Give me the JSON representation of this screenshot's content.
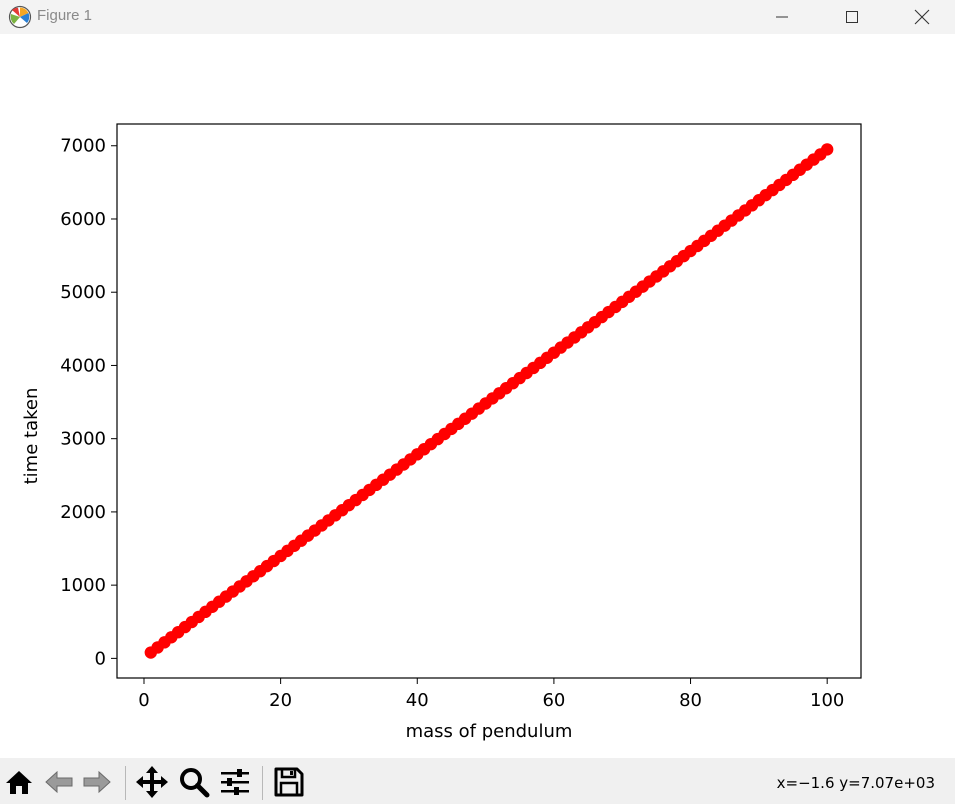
{
  "window": {
    "title": "Figure 1",
    "controls": [
      "minimize-icon",
      "maximize-icon",
      "close-icon"
    ]
  },
  "toolbar": {
    "buttons": [
      "home-icon",
      "back-icon",
      "forward-icon",
      "pan-icon",
      "zoom-icon",
      "configure-subplots-icon",
      "save-icon"
    ],
    "coords_readout": "x=−1.6 y=7.07e+03"
  },
  "chart_data": {
    "type": "scatter",
    "title": "",
    "xlabel": "mass of pendulum",
    "ylabel": "time taken",
    "xlim": [
      -3.95,
      104.95
    ],
    "ylim": [
      -268,
      7297
    ],
    "xticks": [
      0,
      20,
      40,
      60,
      80,
      100
    ],
    "xtick_labels": [
      "0",
      "20",
      "40",
      "60",
      "80",
      "100"
    ],
    "yticks": [
      0,
      1000,
      2000,
      3000,
      4000,
      5000,
      6000,
      7000
    ],
    "ytick_labels": [
      "0",
      "1000",
      "2000",
      "3000",
      "4000",
      "5000",
      "6000",
      "7000"
    ],
    "grid": false,
    "marker_color": "#ff0000",
    "series": [
      {
        "x_start": 1,
        "x_end": 100,
        "x_step": 1,
        "y_start": 80,
        "y_end": 6950
      }
    ]
  }
}
